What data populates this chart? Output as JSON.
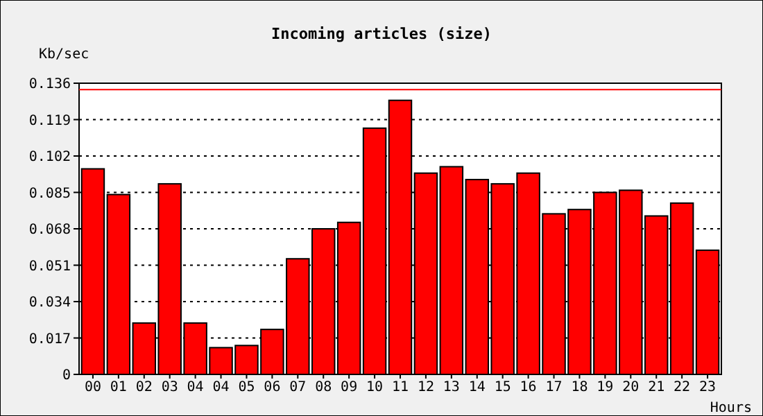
{
  "chart_data": {
    "type": "bar",
    "title": "Incoming articles (size)",
    "ylabel": "Kb/sec",
    "xlabel": "Hours",
    "categories": [
      "00",
      "01",
      "02",
      "03",
      "04",
      "04",
      "05",
      "06",
      "07",
      "08",
      "09",
      "10",
      "11",
      "12",
      "13",
      "14",
      "15",
      "16",
      "17",
      "18",
      "19",
      "20",
      "21",
      "22",
      "23"
    ],
    "values": [
      0.096,
      0.084,
      0.024,
      0.089,
      0.024,
      0.0125,
      0.0135,
      0.021,
      0.054,
      0.068,
      0.071,
      0.115,
      0.128,
      0.094,
      0.097,
      0.091,
      0.089,
      0.094,
      0.075,
      0.077,
      0.085,
      0.086,
      0.074,
      0.08,
      0.058
    ],
    "color": "#ff0000",
    "ylim": [
      0,
      0.136
    ],
    "yticks": [
      {
        "value": 0,
        "label": "0"
      },
      0.017,
      0.034,
      0.051,
      0.068,
      0.085,
      0.102,
      0.119,
      0.136
    ],
    "grid": "y",
    "ref_lines": [
      {
        "axis": "y",
        "value": 0.133,
        "color": "#ff0000"
      }
    ]
  }
}
